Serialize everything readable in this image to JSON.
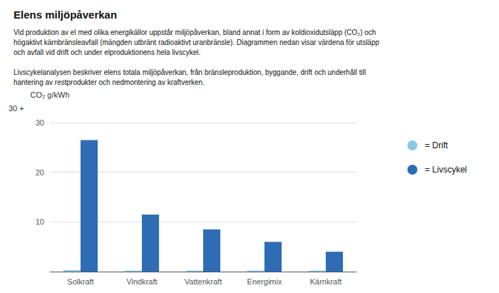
{
  "chart_data": {
    "type": "bar",
    "title": "Elens miljöpåverkan",
    "paragraphs": [
      [
        "Vid produktion av el med olika energikällor uppstår miljöpåverkan, bland annat i form av koldioxidutsläpp (CO₂) och",
        "högaktivt kärnbränsleavfall (mängden utbränt radioaktivt uranbränsle). Diagrammen nedan visar värdena för utsläpp",
        "och avfall vid drift och under elproduktionens hela livscykel."
      ],
      [
        "Livscykelanalysen beskriver elens totala miljöpåverkan, från bränsleproduktion, byggande, drift och underhåll till",
        "hantering av restprodukter och nedmontering av kraftverken."
      ]
    ],
    "categories": [
      "Solkraft",
      "Vindkraft",
      "Vattenkraft",
      "Energimix",
      "Kärnkraft"
    ],
    "series": [
      {
        "name": "= Drift",
        "color": "#8EC8E8",
        "values": [
          0.3,
          0.2,
          0.2,
          0.2,
          0.2
        ]
      },
      {
        "name": "= Livscykel",
        "color": "#2E6DB4",
        "values": [
          26.5,
          11.5,
          8.5,
          6.0,
          4.0
        ]
      }
    ],
    "ylabel": "CO₂ g/kWh",
    "annotations": [
      "30 +"
    ],
    "ylim": [
      0,
      30
    ],
    "yticks": [
      {
        "value": 0,
        "label": ""
      },
      10,
      20,
      30
    ],
    "grid": true,
    "legend": "right"
  }
}
